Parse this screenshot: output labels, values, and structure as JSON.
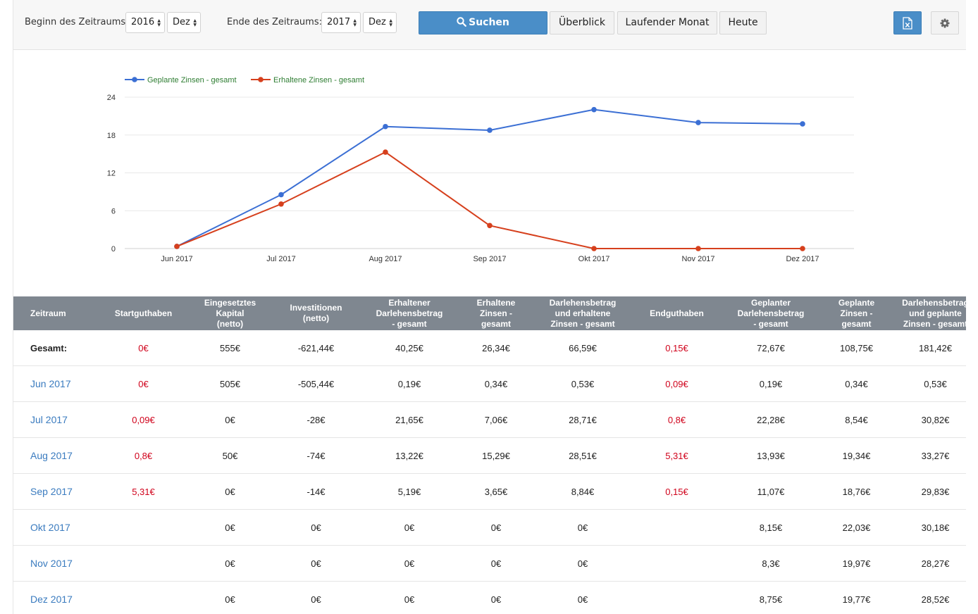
{
  "toolbar": {
    "start_label": "Beginn des Zeitraums",
    "start_year": "2016",
    "start_month": "Dez",
    "end_label": "Ende des Zeitraums:",
    "end_year": "2017",
    "end_month": "Dez",
    "search_label": "Suchen",
    "overview_label": "Überblick",
    "current_month_label": "Laufender Monat",
    "today_label": "Heute",
    "export_icon": "excel-export-icon",
    "settings_icon": "gear-icon",
    "primary_color": "#4a8ec8"
  },
  "chart_data": {
    "type": "line",
    "categories": [
      "Jun 2017",
      "Jul 2017",
      "Aug 2017",
      "Sep 2017",
      "Okt 2017",
      "Nov 2017",
      "Dez 2017"
    ],
    "yticks": [
      "0",
      "6",
      "12",
      "18",
      "24"
    ],
    "ylim": [
      0,
      24
    ],
    "grid": true,
    "legend_position": "top-left",
    "series": [
      {
        "name": "Geplante Zinsen - gesamt",
        "color": "#3b6fd4",
        "values": [
          0.34,
          8.54,
          19.34,
          18.76,
          22.03,
          19.97,
          19.77
        ]
      },
      {
        "name": "Erhaltene Zinsen - gesamt",
        "color": "#d6401d",
        "values": [
          0.34,
          7.06,
          15.29,
          3.65,
          0,
          0,
          0
        ]
      }
    ],
    "legend_text_color": "#2e7d32"
  },
  "table": {
    "headers": [
      [
        "Zeitraum"
      ],
      [
        "Startguthaben"
      ],
      [
        "Eingesetztes",
        "Kapital",
        "(netto)"
      ],
      [
        "Investitionen",
        "(netto)"
      ],
      [
        "Erhaltener",
        "Darlehensbetrag",
        "- gesamt"
      ],
      [
        "Erhaltene",
        "Zinsen -",
        "gesamt"
      ],
      [
        "Darlehensbetrag",
        "und erhaltene",
        "Zinsen - gesamt"
      ],
      [
        "Endguthaben"
      ],
      [
        "Geplanter",
        "Darlehensbetrag",
        "- gesamt"
      ],
      [
        "Geplante",
        "Zinsen -",
        "gesamt"
      ],
      [
        "Darlehensbetrag",
        "und geplante",
        "Zinsen - gesamt"
      ]
    ],
    "rows": [
      {
        "kind": "total",
        "cells": [
          "Gesamt:",
          "0€",
          "555€",
          "-621,44€",
          "40,25€",
          "26,34€",
          "66,59€",
          "0,15€",
          "72,67€",
          "108,75€",
          "181,42€"
        ]
      },
      {
        "kind": "period",
        "cells": [
          "Jun 2017",
          "0€",
          "505€",
          "-505,44€",
          "0,19€",
          "0,34€",
          "0,53€",
          "0,09€",
          "0,19€",
          "0,34€",
          "0,53€"
        ]
      },
      {
        "kind": "period",
        "cells": [
          "Jul 2017",
          "0,09€",
          "0€",
          "-28€",
          "21,65€",
          "7,06€",
          "28,71€",
          "0,8€",
          "22,28€",
          "8,54€",
          "30,82€"
        ]
      },
      {
        "kind": "period",
        "cells": [
          "Aug 2017",
          "0,8€",
          "50€",
          "-74€",
          "13,22€",
          "15,29€",
          "28,51€",
          "5,31€",
          "13,93€",
          "19,34€",
          "33,27€"
        ]
      },
      {
        "kind": "period",
        "cells": [
          "Sep 2017",
          "5,31€",
          "0€",
          "-14€",
          "5,19€",
          "3,65€",
          "8,84€",
          "0,15€",
          "11,07€",
          "18,76€",
          "29,83€"
        ]
      },
      {
        "kind": "period",
        "cells": [
          "Okt 2017",
          "",
          "0€",
          "0€",
          "0€",
          "0€",
          "0€",
          "",
          "8,15€",
          "22,03€",
          "30,18€"
        ]
      },
      {
        "kind": "period",
        "cells": [
          "Nov 2017",
          "",
          "0€",
          "0€",
          "0€",
          "0€",
          "0€",
          "",
          "8,3€",
          "19,97€",
          "28,27€"
        ]
      },
      {
        "kind": "period",
        "cells": [
          "Dez 2017",
          "",
          "0€",
          "0€",
          "0€",
          "0€",
          "0€",
          "",
          "8,75€",
          "19,77€",
          "28,52€"
        ]
      }
    ],
    "header_bg": "#7f8790",
    "period_color": "#3a7bbf",
    "balance_color": "#d0021b"
  }
}
